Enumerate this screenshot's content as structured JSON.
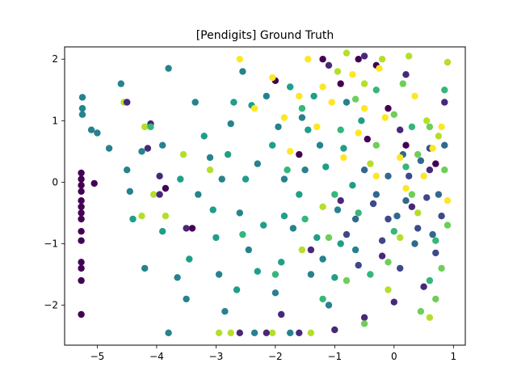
{
  "chart_data": {
    "type": "scatter",
    "title": "[Pendigits] Ground Truth",
    "xlabel": "",
    "ylabel": "",
    "xlim": [
      -5.55,
      1.2
    ],
    "ylim": [
      -2.65,
      2.2
    ],
    "xticks": [
      -5,
      -4,
      -3,
      -2,
      -1,
      0,
      1
    ],
    "yticks": [
      -2,
      -1,
      0,
      1,
      2
    ],
    "xtick_labels": [
      "−5",
      "−4",
      "−3",
      "−2",
      "−1",
      "0",
      "1"
    ],
    "ytick_labels": [
      "−2",
      "−1",
      "0",
      "1",
      "2"
    ],
    "grid": false,
    "legend": "none",
    "colormap": "viridis",
    "colors": [
      "#440154",
      "#482878",
      "#3e4989",
      "#31688e",
      "#26828e",
      "#1f9e89",
      "#35b779",
      "#6ece58",
      "#b5de2b",
      "#fde725"
    ],
    "series": [
      {
        "values": [
          [
            -5.27,
            0.15
          ],
          [
            -5.27,
            0.05
          ],
          [
            -5.27,
            -0.05
          ],
          [
            -5.27,
            -0.15
          ],
          [
            -5.27,
            -0.3
          ],
          [
            -5.27,
            -0.4
          ],
          [
            -5.27,
            -0.5
          ],
          [
            -5.27,
            -0.6
          ],
          [
            -5.27,
            -0.8
          ],
          [
            -5.27,
            -0.95
          ],
          [
            -5.27,
            -1.3
          ],
          [
            -5.27,
            -1.4
          ],
          [
            -5.27,
            -1.6
          ],
          [
            -5.27,
            -2.15
          ],
          [
            -5.05,
            -0.02
          ],
          [
            -3.85,
            -0.1
          ],
          [
            -3.4,
            -0.75
          ],
          [
            -2.0,
            1.65
          ],
          [
            -1.2,
            2.0
          ],
          [
            -0.9,
            1.6
          ],
          [
            -0.45,
            0.7
          ],
          [
            -0.3,
            1.9
          ],
          [
            0.2,
            0.6
          ],
          [
            0.7,
            0.3
          ],
          [
            -1.6,
            0.45
          ],
          [
            -0.6,
            2.0
          ],
          [
            -0.1,
            1.2
          ]
        ]
      },
      {
        "values": [
          [
            -4.5,
            1.3
          ],
          [
            -4.1,
            0.95
          ],
          [
            -4.15,
            0.55
          ],
          [
            -3.95,
            0.1
          ],
          [
            -3.95,
            -0.2
          ],
          [
            -3.5,
            -0.75
          ],
          [
            -2.6,
            -2.45
          ],
          [
            -2.15,
            -2.45
          ],
          [
            -1.6,
            -2.45
          ],
          [
            -1.0,
            -2.4
          ],
          [
            -0.5,
            -2.2
          ],
          [
            0.0,
            -1.95
          ],
          [
            0.5,
            -1.7
          ],
          [
            -0.2,
            -1.2
          ],
          [
            0.3,
            -0.4
          ],
          [
            0.6,
            0.2
          ],
          [
            -1.1,
            1.9
          ],
          [
            -0.5,
            2.05
          ],
          [
            0.2,
            1.75
          ],
          [
            0.85,
            1.3
          ],
          [
            -1.9,
            -2.15
          ],
          [
            -1.4,
            -1.1
          ],
          [
            -0.9,
            -0.3
          ],
          [
            0.1,
            0.85
          ]
        ]
      },
      {
        "values": [
          [
            -0.2,
            -0.95
          ],
          [
            0.1,
            -1.4
          ],
          [
            0.4,
            -0.75
          ],
          [
            0.7,
            -1.15
          ],
          [
            -0.35,
            -0.35
          ],
          [
            0.25,
            0.1
          ],
          [
            0.55,
            -0.25
          ],
          [
            -0.6,
            -1.35
          ],
          [
            0.8,
            -0.55
          ],
          [
            -0.1,
            -0.6
          ],
          [
            0.6,
            0.55
          ],
          [
            -0.8,
            -0.85
          ]
        ]
      },
      {
        "values": [
          [
            -0.1,
            0.1
          ],
          [
            0.2,
            -0.3
          ],
          [
            0.45,
            0.35
          ],
          [
            0.75,
            -0.2
          ],
          [
            -0.5,
            0.2
          ],
          [
            0.35,
            -1.0
          ],
          [
            0.05,
            -0.55
          ],
          [
            0.85,
            0.6
          ],
          [
            -0.3,
            -0.2
          ],
          [
            0.65,
            -0.85
          ],
          [
            0.15,
            0.45
          ],
          [
            -0.65,
            -0.6
          ]
        ]
      },
      {
        "values": [
          [
            -5.25,
            1.38
          ],
          [
            -5.25,
            1.2
          ],
          [
            -5.25,
            1.1
          ],
          [
            -5.1,
            0.85
          ],
          [
            -5.0,
            0.8
          ],
          [
            -4.6,
            1.6
          ],
          [
            -4.8,
            0.55
          ],
          [
            -4.5,
            0.2
          ],
          [
            -4.45,
            -0.15
          ],
          [
            -4.25,
            0.5
          ],
          [
            -4.2,
            -1.4
          ],
          [
            -3.8,
            1.85
          ],
          [
            -3.9,
            0.6
          ],
          [
            -3.65,
            -1.55
          ],
          [
            -3.5,
            -1.9
          ],
          [
            -3.3,
            -0.2
          ],
          [
            -3.1,
            0.4
          ],
          [
            -2.95,
            -1.5
          ],
          [
            -2.85,
            -2.1
          ],
          [
            -2.75,
            0.95
          ],
          [
            -2.6,
            -0.5
          ],
          [
            -2.45,
            -1.1
          ],
          [
            -2.3,
            0.3
          ],
          [
            -2.15,
            1.4
          ],
          [
            -2.0,
            -1.8
          ],
          [
            -1.85,
            0.05
          ],
          [
            -1.7,
            -0.75
          ],
          [
            -1.55,
            1.05
          ],
          [
            -1.4,
            -1.5
          ],
          [
            -1.25,
            0.6
          ],
          [
            -1.1,
            -2.0
          ],
          [
            -0.95,
            -0.45
          ],
          [
            -0.8,
            1.3
          ],
          [
            -0.65,
            -1.1
          ],
          [
            -3.8,
            -2.45
          ],
          [
            -3.35,
            1.3
          ],
          [
            -2.9,
            0.05
          ],
          [
            -2.55,
            1.8
          ],
          [
            -2.35,
            -2.45
          ],
          [
            -1.95,
            0.9
          ],
          [
            -1.75,
            -2.45
          ],
          [
            -1.5,
            0.2
          ],
          [
            -1.2,
            -1.25
          ]
        ]
      },
      {
        "values": [
          [
            -4.4,
            -0.6
          ],
          [
            -3.9,
            -0.8
          ],
          [
            -3.6,
            0.05
          ],
          [
            -3.45,
            -1.25
          ],
          [
            -3.2,
            0.75
          ],
          [
            -3.0,
            -0.9
          ],
          [
            -2.8,
            0.45
          ],
          [
            -2.65,
            -1.75
          ],
          [
            -2.5,
            0.05
          ],
          [
            -2.4,
            1.25
          ],
          [
            -2.2,
            -0.7
          ],
          [
            -2.05,
            0.6
          ],
          [
            -1.9,
            -1.3
          ],
          [
            -1.75,
            1.55
          ],
          [
            -1.6,
            -0.2
          ],
          [
            -1.45,
            0.85
          ],
          [
            -1.3,
            -0.9
          ],
          [
            -1.15,
            0.25
          ],
          [
            -1.0,
            -1.55
          ],
          [
            -0.85,
            0.55
          ],
          [
            -0.7,
            -0.05
          ],
          [
            -0.55,
            1.0
          ],
          [
            -3.05,
            -0.45
          ],
          [
            -2.7,
            1.3
          ],
          [
            -2.3,
            -1.45
          ],
          [
            -1.85,
            -0.55
          ],
          [
            -1.35,
            1.4
          ],
          [
            -0.9,
            -1.0
          ]
        ]
      },
      {
        "values": [
          [
            -4.1,
            0.9
          ],
          [
            -2.0,
            -1.5
          ],
          [
            -1.8,
            0.2
          ],
          [
            -1.5,
            -0.6
          ],
          [
            -1.2,
            -1.9
          ],
          [
            -0.9,
            0.85
          ],
          [
            -0.6,
            -0.5
          ],
          [
            -0.3,
            1.5
          ],
          [
            0.0,
            -0.8
          ],
          [
            0.3,
            0.9
          ],
          [
            0.6,
            -1.6
          ],
          [
            0.85,
            1.5
          ],
          [
            -1.0,
            -0.2
          ],
          [
            -0.4,
            -1.5
          ],
          [
            0.2,
            0.25
          ],
          [
            0.7,
            -0.95
          ],
          [
            -2.55,
            -0.85
          ],
          [
            -1.55,
            1.2
          ]
        ]
      },
      {
        "values": [
          [
            -0.3,
            0.6
          ],
          [
            0.0,
            1.1
          ],
          [
            0.3,
            -0.2
          ],
          [
            0.6,
            0.9
          ],
          [
            0.9,
            -0.7
          ],
          [
            -0.8,
            -1.6
          ],
          [
            -0.5,
            -2.3
          ],
          [
            -0.1,
            -1.3
          ],
          [
            0.45,
            -2.1
          ],
          [
            0.85,
            0.2
          ],
          [
            -1.1,
            -0.9
          ],
          [
            0.15,
            1.6
          ],
          [
            0.7,
            -1.9
          ],
          [
            -0.65,
            1.35
          ],
          [
            0.4,
            0.45
          ],
          [
            0.8,
            -1.4
          ]
        ]
      },
      {
        "values": [
          [
            -4.55,
            1.3
          ],
          [
            -4.2,
            0.9
          ],
          [
            -4.05,
            -0.2
          ],
          [
            -3.85,
            -0.55
          ],
          [
            -3.55,
            0.45
          ],
          [
            -2.75,
            -2.45
          ],
          [
            -2.95,
            -2.45
          ],
          [
            -2.05,
            -2.45
          ],
          [
            -1.55,
            -1.1
          ],
          [
            -1.2,
            -0.4
          ],
          [
            -0.8,
            2.1
          ],
          [
            -0.5,
            1.6
          ],
          [
            -0.1,
            -1.75
          ],
          [
            0.25,
            2.05
          ],
          [
            0.55,
            1.0
          ],
          [
            0.9,
            1.95
          ],
          [
            -0.4,
            0.3
          ],
          [
            0.1,
            -0.9
          ],
          [
            -0.95,
            1.8
          ],
          [
            0.4,
            -0.5
          ],
          [
            0.75,
            0.75
          ],
          [
            -1.4,
            -2.45
          ],
          [
            -0.2,
            2.0
          ],
          [
            0.6,
            -2.2
          ],
          [
            -4.25,
            -0.55
          ],
          [
            -3.1,
            0.2
          ]
        ]
      },
      {
        "values": [
          [
            -2.6,
            2.0
          ],
          [
            -2.35,
            1.2
          ],
          [
            -2.05,
            1.7
          ],
          [
            -1.85,
            1.05
          ],
          [
            -1.6,
            1.4
          ],
          [
            -1.45,
            2.0
          ],
          [
            -1.3,
            0.9
          ],
          [
            -1.05,
            1.3
          ],
          [
            -0.85,
            0.4
          ],
          [
            -0.7,
            1.75
          ],
          [
            -0.5,
            1.2
          ],
          [
            -0.3,
            0.1
          ],
          [
            -0.15,
            1.05
          ],
          [
            0.1,
            0.4
          ],
          [
            0.35,
            1.4
          ],
          [
            0.5,
            0.1
          ],
          [
            0.8,
            0.9
          ],
          [
            -1.75,
            0.5
          ],
          [
            -1.2,
            1.55
          ],
          [
            -0.6,
            0.8
          ],
          [
            -0.25,
            1.85
          ],
          [
            0.2,
            -0.1
          ],
          [
            0.65,
            0.55
          ],
          [
            0.9,
            -0.3
          ]
        ]
      }
    ]
  }
}
